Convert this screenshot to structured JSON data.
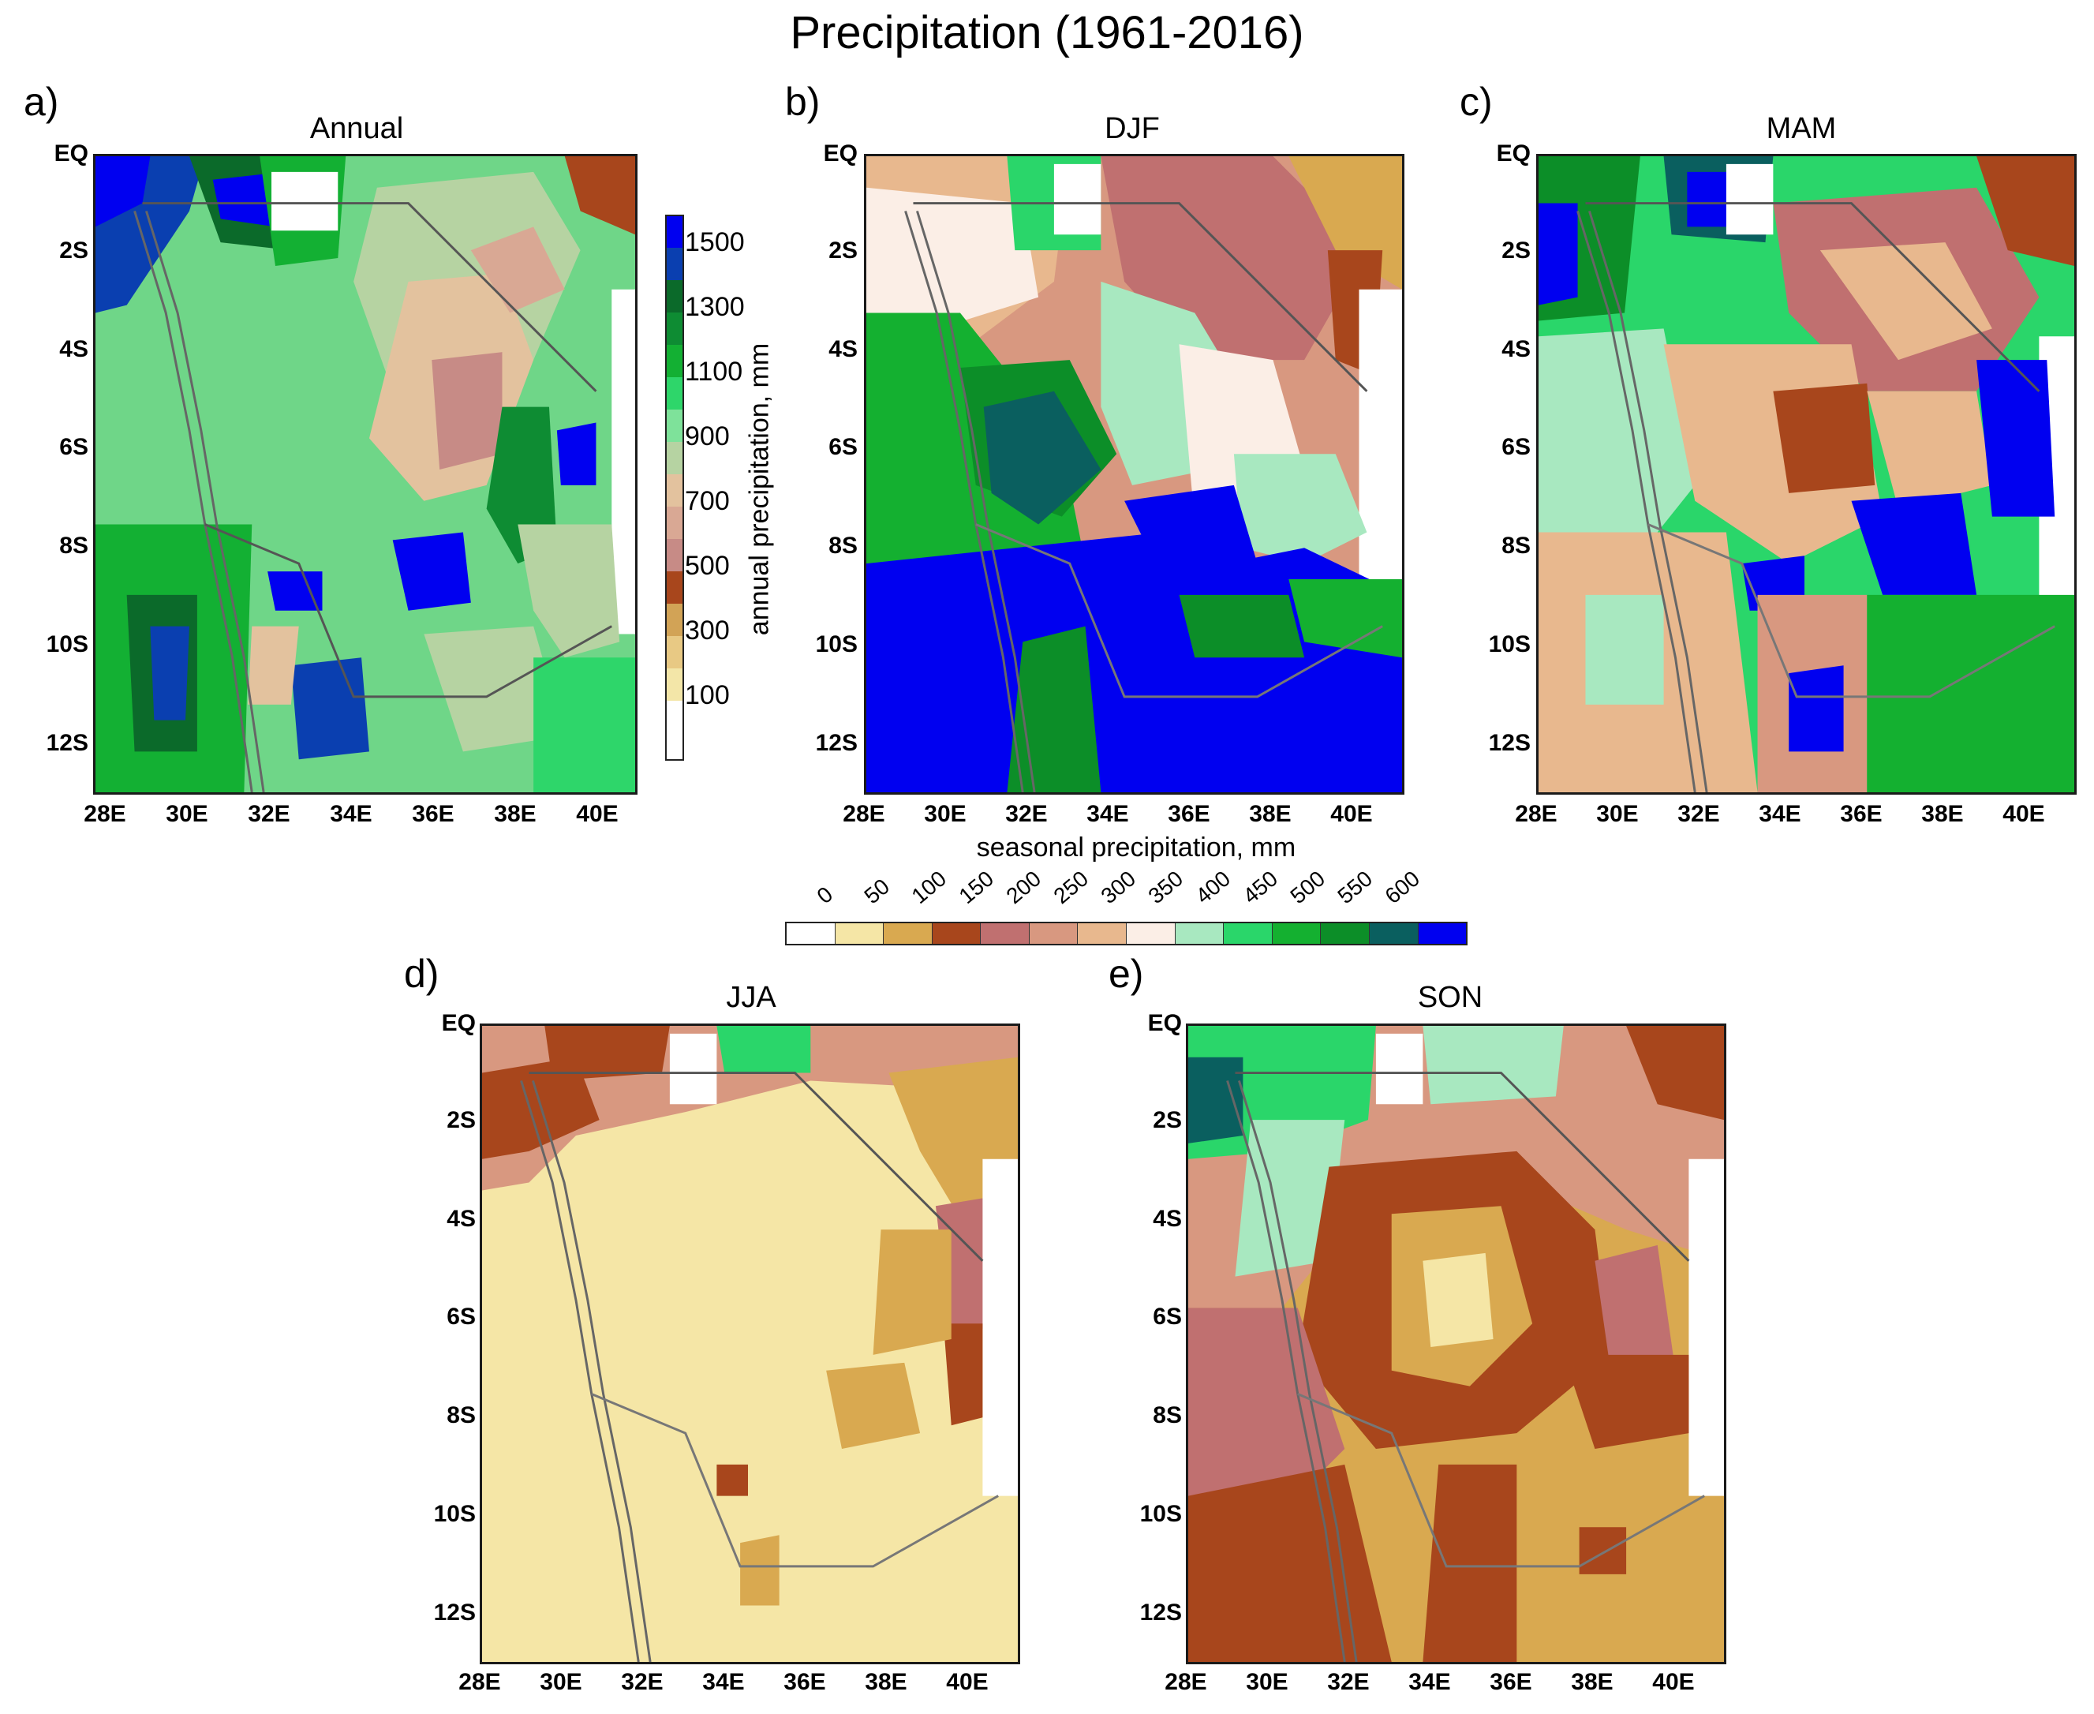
{
  "title": "Precipitation (1961-2016)",
  "panels": [
    {
      "label": "a)",
      "title": "Annual"
    },
    {
      "label": "b)",
      "title": "DJF"
    },
    {
      "label": "c)",
      "title": "MAM"
    },
    {
      "label": "d)",
      "title": "JJA"
    },
    {
      "label": "e)",
      "title": "SON"
    }
  ],
  "y_ticks": [
    "EQ",
    "2S",
    "4S",
    "6S",
    "8S",
    "10S",
    "12S"
  ],
  "x_ticks": [
    "28E",
    "30E",
    "32E",
    "34E",
    "36E",
    "38E",
    "40E"
  ],
  "annual_colorbar": {
    "label": "annual precipitation, mm",
    "ticks": [
      "1500",
      "1300",
      "1100",
      "900",
      "700",
      "500",
      "300",
      "100"
    ]
  },
  "seasonal_colorbar": {
    "label": "seasonal precipitation, mm",
    "ticks": [
      "0",
      "50",
      "100",
      "150",
      "200",
      "250",
      "300",
      "350",
      "400",
      "450",
      "500",
      "550",
      "600"
    ]
  },
  "palette": {
    "annual": [
      "#0000f0",
      "#0a3fb0",
      "#0b6a2a",
      "#0e8c33",
      "#13b033",
      "#2ed66a",
      "#7ee29a",
      "#b6d3a2",
      "#e3c29e",
      "#d9a894",
      "#c78b86",
      "#a8461c",
      "#d2a356",
      "#f3e6a8",
      "#ffffff"
    ],
    "seasonal": [
      "#ffffff",
      "#f5e6a6",
      "#d9a950",
      "#a8461c",
      "#c07070",
      "#d89880",
      "#e8b88e",
      "#fbeee6",
      "#a8e8c0",
      "#2ad66a",
      "#14b030",
      "#0c8e28",
      "#0a5f5f",
      "#0000f0"
    ]
  }
}
